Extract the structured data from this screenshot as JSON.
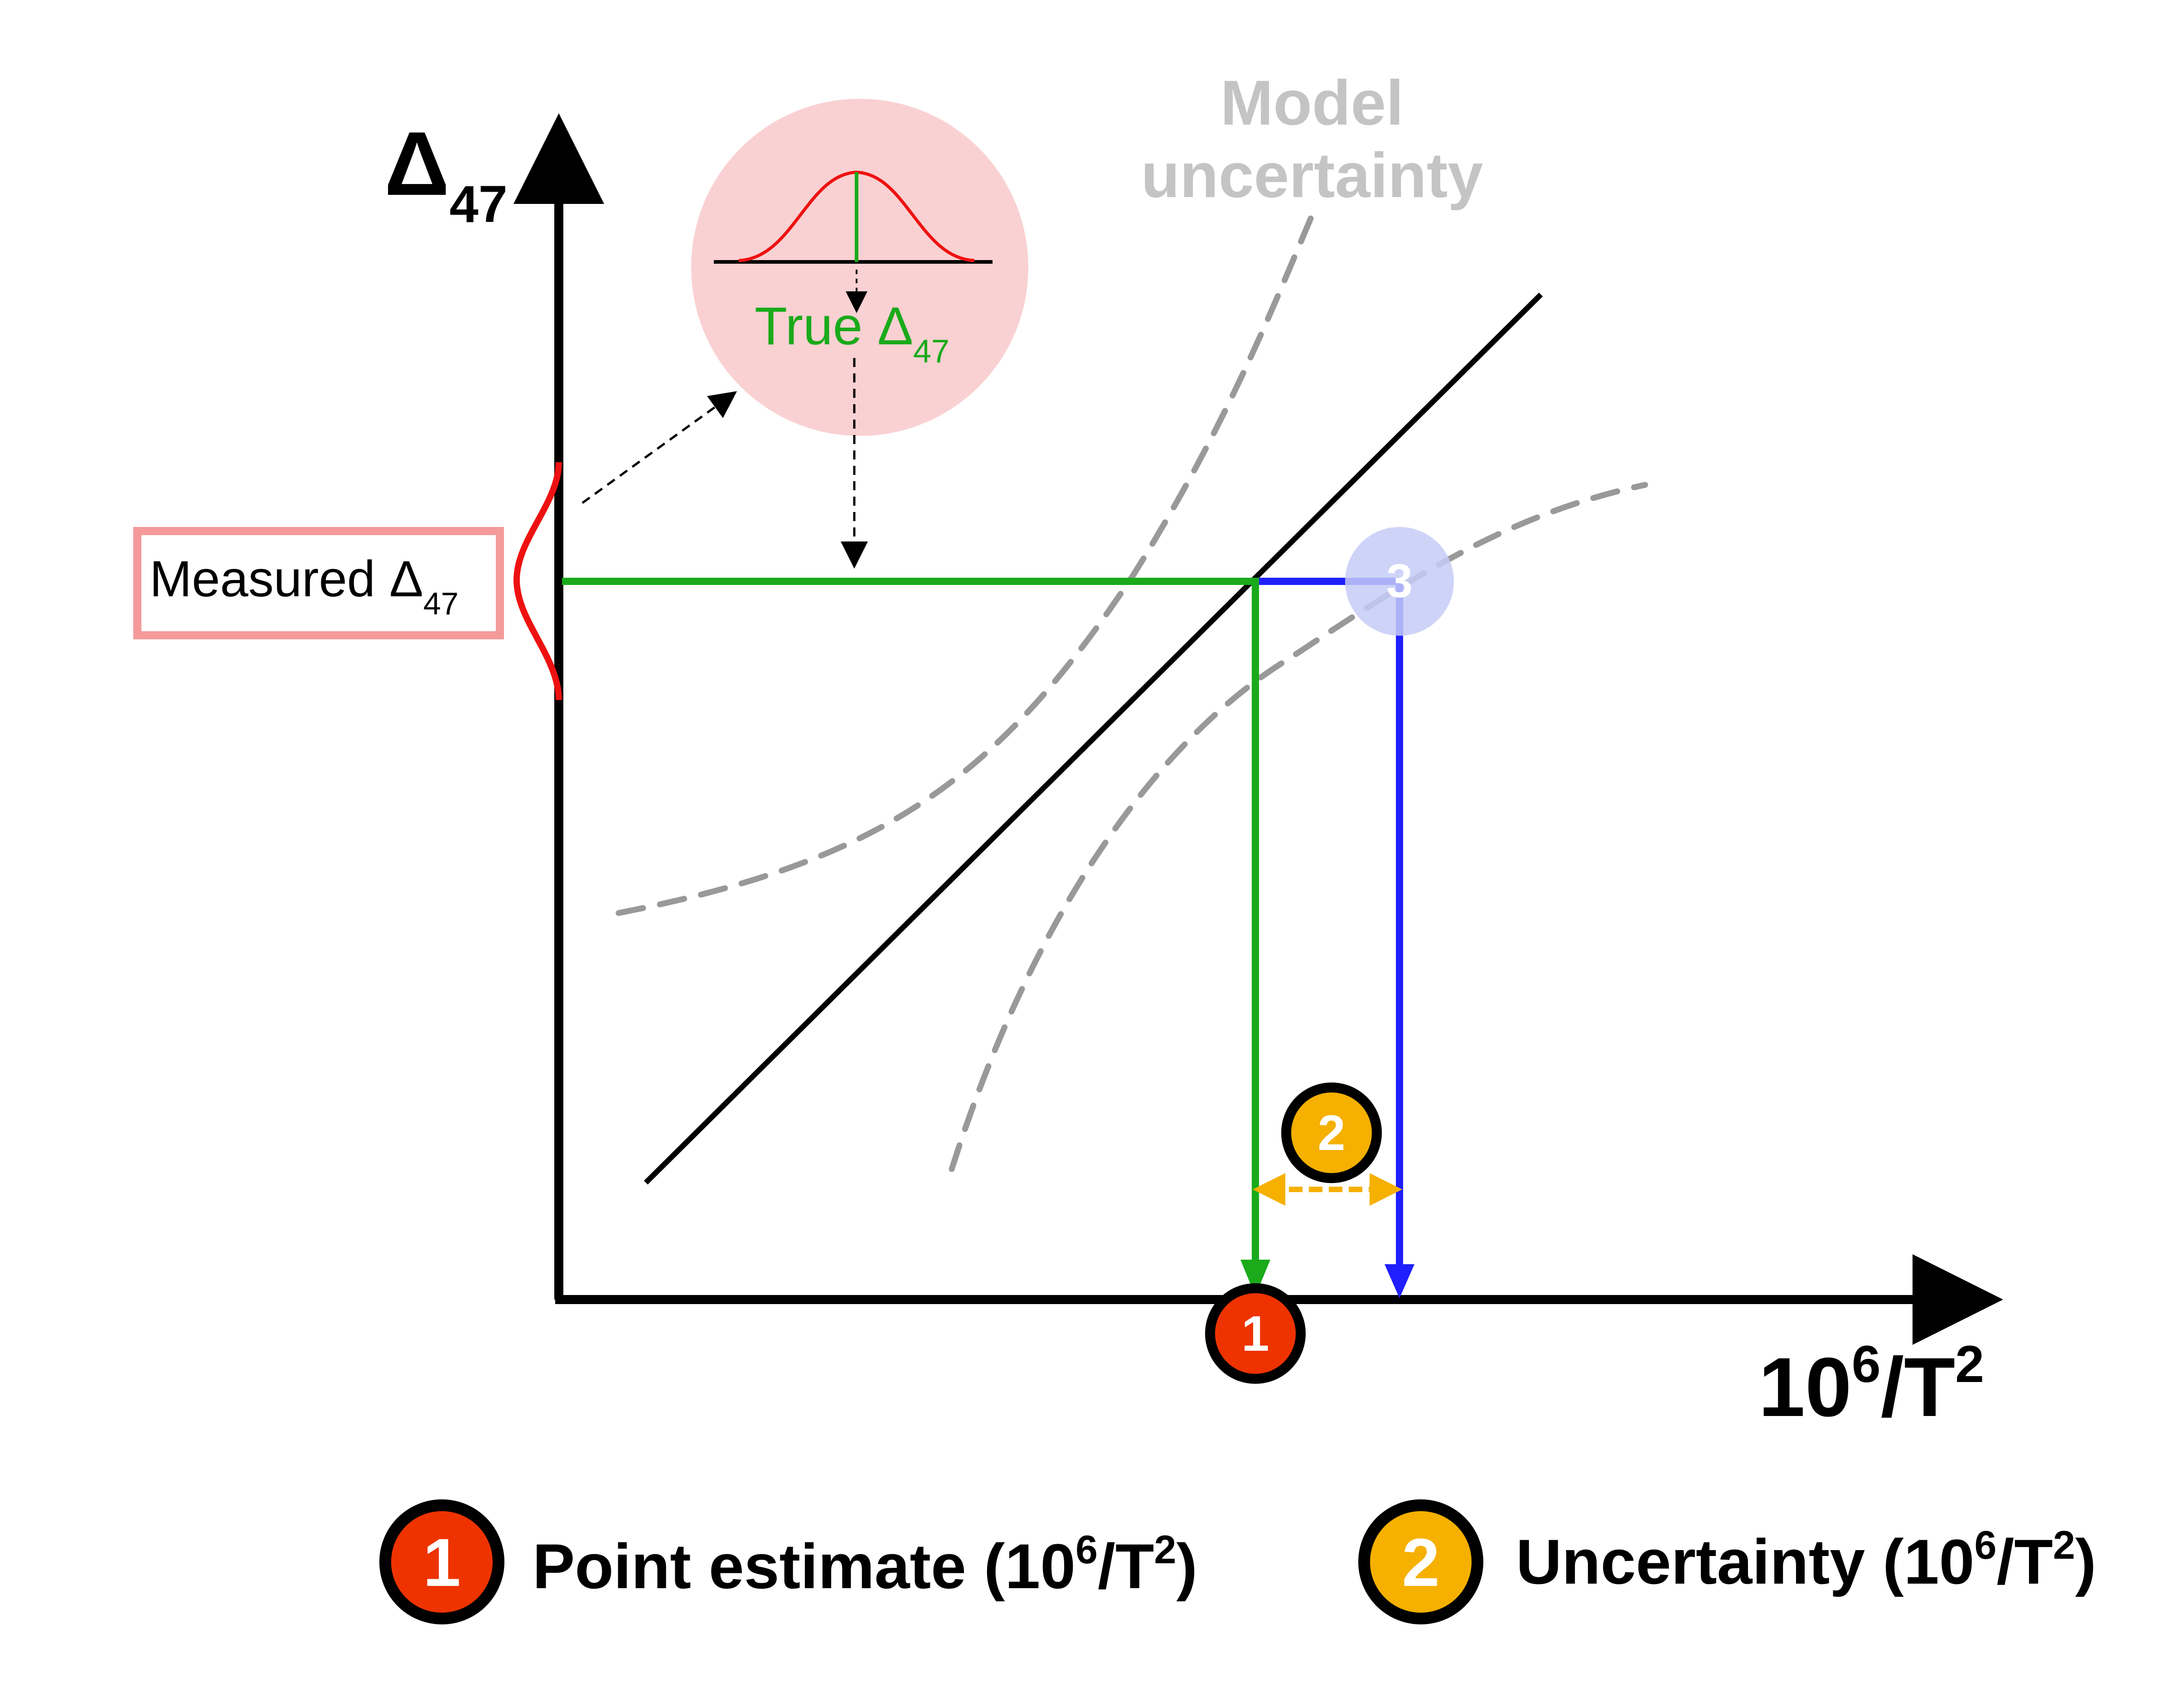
{
  "axes": {
    "y_label": "Δ",
    "y_label_sub": "47",
    "x_label_base": "10",
    "x_label_sup1": "6",
    "x_label_mid": "/T",
    "x_label_sup2": "2"
  },
  "model_uncertainty": {
    "line1": "Model",
    "line2": "uncertainty"
  },
  "inset": {
    "label": "True Δ",
    "label_sub": "47"
  },
  "measured_box": {
    "label": "Measured Δ",
    "label_sub": "47"
  },
  "markers": {
    "m1": "1",
    "m2": "2",
    "m3": "3"
  },
  "legend": {
    "item1": {
      "badge": "1",
      "text_a": "Point estimate (10",
      "text_sup1": "6",
      "text_b": "/T",
      "text_sup2": "2",
      "text_c": ")"
    },
    "item2": {
      "badge": "2",
      "text_a": "Uncertainty (10",
      "text_sup1": "6",
      "text_b": "/T",
      "text_sup2": "2",
      "text_c": ")"
    }
  },
  "colors": {
    "axis": "#000000",
    "green": "#1aaa1a",
    "blue": "#1f1fff",
    "red": "#ee1111",
    "orange_badge": "#f5b000",
    "red_badge": "#ee3300",
    "inset_fill": "#f9d1d2",
    "box_border": "#f49a9a",
    "dashed": "#999999",
    "model_text": "#c4c4c4"
  }
}
